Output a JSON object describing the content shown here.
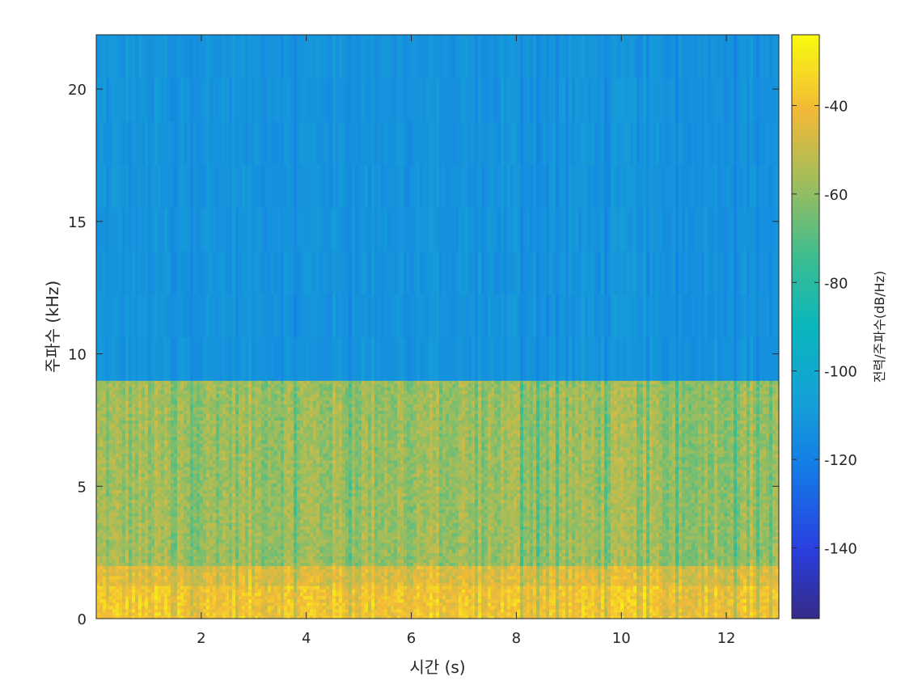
{
  "chart_data": {
    "type": "heatmap",
    "subtype": "spectrogram",
    "xlabel": "시간 (s)",
    "ylabel": "주파수 (kHz)",
    "colorbar_label": "전력/주파수(dB/Hz)",
    "colormap": "parula",
    "xlim": [
      0,
      13
    ],
    "ylim": [
      0,
      22.05
    ],
    "clim": [
      -156,
      -24
    ],
    "xticks": [
      2,
      4,
      6,
      8,
      10,
      12
    ],
    "yticks": [
      0,
      5,
      10,
      15,
      20
    ],
    "cticks": [
      -140,
      -120,
      -100,
      -80,
      -60,
      -40
    ],
    "xtick_labels": [
      "2",
      "4",
      "6",
      "8",
      "10",
      "12"
    ],
    "ytick_labels": [
      "0",
      "5",
      "10",
      "15",
      "20"
    ],
    "ctick_labels": [
      "-140",
      "-120",
      "-100",
      "-80",
      "-60",
      "-40"
    ],
    "cutoff_frequency_khz": 9,
    "band_levels_db": [
      {
        "freq_range_khz": [
          0,
          2
        ],
        "approx_db": -45
      },
      {
        "freq_range_khz": [
          2,
          9
        ],
        "approx_db": -58
      },
      {
        "freq_range_khz": [
          9,
          22.05
        ],
        "approx_db": -112
      }
    ],
    "grid": false,
    "legend": "none"
  }
}
